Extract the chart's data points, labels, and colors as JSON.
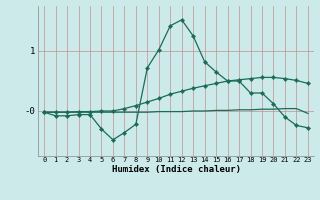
{
  "x": [
    0,
    1,
    2,
    3,
    4,
    5,
    6,
    7,
    8,
    9,
    10,
    11,
    12,
    13,
    14,
    15,
    16,
    17,
    18,
    19,
    20,
    21,
    22,
    23
  ],
  "line1": [
    -0.02,
    -0.08,
    -0.08,
    -0.06,
    -0.06,
    -0.3,
    -0.48,
    -0.36,
    -0.22,
    0.72,
    1.02,
    1.42,
    1.52,
    1.25,
    0.82,
    0.65,
    0.5,
    0.5,
    0.3,
    0.3,
    0.12,
    -0.1,
    -0.24,
    -0.28
  ],
  "line2": [
    -0.02,
    -0.02,
    -0.02,
    -0.01,
    -0.01,
    0.0,
    0.0,
    0.04,
    0.09,
    0.15,
    0.21,
    0.28,
    0.33,
    0.38,
    0.42,
    0.46,
    0.5,
    0.52,
    0.54,
    0.56,
    0.56,
    0.54,
    0.51,
    0.46
  ],
  "line3": [
    -0.02,
    -0.02,
    -0.02,
    -0.02,
    -0.02,
    -0.02,
    -0.02,
    -0.02,
    -0.02,
    -0.02,
    -0.01,
    -0.01,
    -0.01,
    0.0,
    0.0,
    0.01,
    0.01,
    0.02,
    0.02,
    0.03,
    0.03,
    0.04,
    0.04,
    -0.04
  ],
  "line_color": "#1a6b5a",
  "bg_color": "#cceaea",
  "grid_color_v": "#c09090",
  "grid_color_h": "#c09090",
  "xlabel": "Humidex (Indice chaleur)",
  "ylim": [
    -0.75,
    1.75
  ],
  "ytick_vals": [
    0.0,
    1.0
  ],
  "ytick_labels": [
    "-0",
    "1"
  ]
}
